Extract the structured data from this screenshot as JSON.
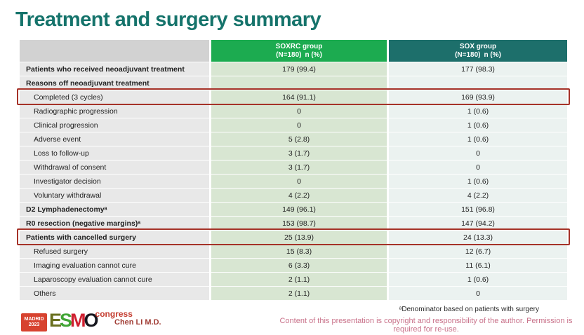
{
  "title": "Treatment and surgery summary",
  "colors": {
    "title_teal": "#15736b",
    "soxrc_header_green": "#1cab50",
    "sox_header_teal": "#1d6f6b",
    "label_header_gray": "#d2d2d2",
    "label_cell_gray": "#e8e8e8",
    "soxrc_cell_green": "#d8e6d2",
    "sox_cell_light": "#ebf2f0",
    "highlight_box_red": "#a53228",
    "copyright_pink": "#c9728a",
    "author_red": "#a03c34",
    "logo_red": "#d7422f"
  },
  "table": {
    "columns": [
      {
        "label": "",
        "sublabel": ""
      },
      {
        "label": "SOXRC group",
        "sublabel": "(N=180) n (%)"
      },
      {
        "label": "SOX group",
        "sublabel": "(N=180) n (%)"
      }
    ],
    "rows": [
      {
        "label": "Patients who received neoadjuvant treatment",
        "bold": true,
        "indent": false,
        "highlight": false,
        "soxrc": "179 (99.4)",
        "sox": "177 (98.3)"
      },
      {
        "label": "Reasons off neoadjuvant treatment",
        "bold": true,
        "indent": false,
        "highlight": false,
        "soxrc": "",
        "sox": ""
      },
      {
        "label": "Completed (3 cycles)",
        "bold": false,
        "indent": true,
        "highlight": true,
        "soxrc": "164 (91.1)",
        "sox": "169 (93.9)"
      },
      {
        "label": "Radiographic progression",
        "bold": false,
        "indent": true,
        "highlight": false,
        "soxrc": "0",
        "sox": "1 (0.6)"
      },
      {
        "label": "Clinical progression",
        "bold": false,
        "indent": true,
        "highlight": false,
        "soxrc": "0",
        "sox": "1 (0.6)"
      },
      {
        "label": "Adverse event",
        "bold": false,
        "indent": true,
        "highlight": false,
        "soxrc": "5 (2.8)",
        "sox": "1 (0.6)"
      },
      {
        "label": "Loss to follow-up",
        "bold": false,
        "indent": true,
        "highlight": false,
        "soxrc": "3 (1.7)",
        "sox": "0"
      },
      {
        "label": "Withdrawal of consent",
        "bold": false,
        "indent": true,
        "highlight": false,
        "soxrc": "3 (1.7)",
        "sox": "0"
      },
      {
        "label": "Investigator decision",
        "bold": false,
        "indent": true,
        "highlight": false,
        "soxrc": "0",
        "sox": "1 (0.6)"
      },
      {
        "label": "Voluntary withdrawal",
        "bold": false,
        "indent": true,
        "highlight": false,
        "soxrc": "4 (2.2)",
        "sox": "4 (2.2)"
      },
      {
        "label": "D2 Lymphadenectomyᵃ",
        "bold": true,
        "indent": false,
        "highlight": false,
        "soxrc": "149 (96.1)",
        "sox": "151 (96.8)"
      },
      {
        "label": "R0 resection (negative margins)ᵃ",
        "bold": true,
        "indent": false,
        "highlight": false,
        "soxrc": "153 (98.7)",
        "sox": "147 (94.2)"
      },
      {
        "label": "Patients with cancelled surgery",
        "bold": true,
        "indent": false,
        "highlight": true,
        "soxrc": "25 (13.9)",
        "sox": "24 (13.3)"
      },
      {
        "label": "Refused surgery",
        "bold": false,
        "indent": true,
        "highlight": false,
        "soxrc": "15 (8.3)",
        "sox": "12 (6.7)"
      },
      {
        "label": "Imaging evaluation cannot cure",
        "bold": false,
        "indent": true,
        "highlight": false,
        "soxrc": "6 (3.3)",
        "sox": "11 (6.1)"
      },
      {
        "label": "Laparoscopy evaluation cannot cure",
        "bold": false,
        "indent": true,
        "highlight": false,
        "soxrc": "2 (1.1)",
        "sox": "1 (0.6)"
      },
      {
        "label": "Others",
        "bold": false,
        "indent": true,
        "highlight": false,
        "soxrc": "2 (1.1)",
        "sox": "0"
      }
    ]
  },
  "footer": {
    "footnote": "ᵃDenominator based on patients with surgery",
    "copyright": "Content of this presentation is copyright and responsibility of the author. Permission is required for re-use.",
    "author": "Chen LI M.D.",
    "logo": {
      "city": "MADRID",
      "year": "2023",
      "letter_e": "E",
      "letter_s": "S",
      "letter_m": "M",
      "letter_o": "O",
      "congress": "congress"
    }
  }
}
